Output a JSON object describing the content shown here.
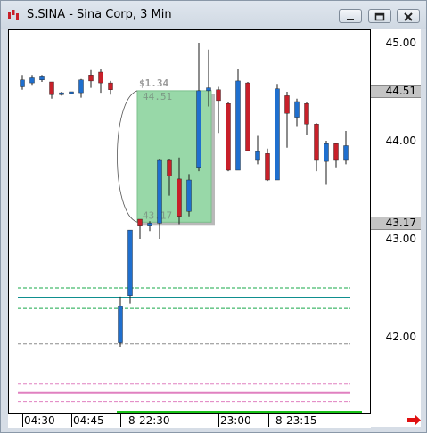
{
  "window": {
    "title": "S.SINA - Sina Corp, 3 Min",
    "colors": {
      "up": "#1f6fce",
      "down": "#c8202a",
      "selection": "#98d8a8",
      "tag": "#c4c4c4"
    }
  },
  "price_axis": {
    "labels": [
      "45.00",
      "44.00",
      "43.00",
      "42.00"
    ],
    "tags": [
      "44.51",
      "43.17"
    ]
  },
  "time_axis": {
    "labels": [
      "04:30",
      "04:45",
      "8-22:30",
      "23:00",
      "8-23:15"
    ]
  },
  "measure": {
    "change": "$1.34",
    "high": "44.51",
    "low": "43.17"
  },
  "chart_data": {
    "type": "candlestick",
    "ylim": [
      41.2,
      45.2
    ],
    "candles": [
      {
        "o": 44.55,
        "c": 44.62,
        "h": 44.67,
        "l": 44.52
      },
      {
        "o": 44.59,
        "c": 44.65,
        "h": 44.67,
        "l": 44.57
      },
      {
        "o": 44.62,
        "c": 44.66,
        "h": 44.67,
        "l": 44.6
      },
      {
        "o": 44.6,
        "c": 44.47,
        "h": 44.6,
        "l": 44.43
      },
      {
        "o": 44.47,
        "c": 44.49,
        "h": 44.5,
        "l": 44.46
      },
      {
        "o": 44.49,
        "c": 44.5,
        "h": 44.5,
        "l": 44.48
      },
      {
        "o": 44.49,
        "c": 44.62,
        "h": 44.63,
        "l": 44.44
      },
      {
        "o": 44.67,
        "c": 44.61,
        "h": 44.72,
        "l": 44.54
      },
      {
        "o": 44.7,
        "c": 44.59,
        "h": 44.73,
        "l": 44.49
      },
      {
        "o": 44.59,
        "c": 44.52,
        "h": 44.61,
        "l": 44.47
      },
      {
        "o": 41.94,
        "c": 42.31,
        "h": 42.41,
        "l": 41.9
      },
      {
        "o": 42.42,
        "c": 43.09,
        "h": 43.09,
        "l": 42.34
      },
      {
        "o": 43.2,
        "c": 43.13,
        "h": 43.17,
        "l": 43.0
      },
      {
        "o": 43.13,
        "c": 43.16,
        "h": 43.18,
        "l": 43.08
      },
      {
        "o": 43.16,
        "c": 43.8,
        "h": 43.81,
        "l": 43.0
      },
      {
        "o": 43.8,
        "c": 43.64,
        "h": 43.81,
        "l": 43.44
      },
      {
        "o": 43.61,
        "c": 43.23,
        "h": 43.83,
        "l": 43.15
      },
      {
        "o": 43.28,
        "c": 43.6,
        "h": 43.66,
        "l": 43.23
      },
      {
        "o": 43.72,
        "c": 44.51,
        "h": 45.0,
        "l": 43.69
      },
      {
        "o": 44.51,
        "c": 44.54,
        "h": 44.93,
        "l": 44.35
      },
      {
        "o": 44.52,
        "c": 44.41,
        "h": 44.55,
        "l": 44.08
      },
      {
        "o": 44.38,
        "c": 43.7,
        "h": 44.4,
        "l": 43.69
      },
      {
        "o": 43.7,
        "c": 44.61,
        "h": 44.73,
        "l": 43.7
      },
      {
        "o": 44.59,
        "c": 43.9,
        "h": 44.6,
        "l": 43.9
      },
      {
        "o": 43.8,
        "c": 43.89,
        "h": 44.05,
        "l": 43.76
      },
      {
        "o": 43.87,
        "c": 43.6,
        "h": 43.92,
        "l": 43.59
      },
      {
        "o": 43.6,
        "c": 44.53,
        "h": 44.58,
        "l": 43.6
      },
      {
        "o": 44.46,
        "c": 44.28,
        "h": 44.5,
        "l": 43.93
      },
      {
        "o": 44.24,
        "c": 44.4,
        "h": 44.43,
        "l": 44.15
      },
      {
        "o": 44.38,
        "c": 44.17,
        "h": 44.4,
        "l": 44.06
      },
      {
        "o": 44.17,
        "c": 43.8,
        "h": 44.18,
        "l": 43.69
      },
      {
        "o": 43.79,
        "c": 43.97,
        "h": 44.0,
        "l": 43.55
      },
      {
        "o": 43.97,
        "c": 43.8,
        "h": 43.98,
        "l": 43.72
      },
      {
        "o": 43.8,
        "c": 43.95,
        "h": 44.1,
        "l": 43.76
      }
    ],
    "levels": [
      {
        "price": 42.5,
        "color": "#17a84a",
        "style": "dash"
      },
      {
        "price": 42.4,
        "color": "#0f8f8f",
        "style": "solid"
      },
      {
        "price": 42.29,
        "color": "#17a84a",
        "style": "dash"
      },
      {
        "price": 41.93,
        "color": "#8c8c8c",
        "style": "dash"
      },
      {
        "price": 41.52,
        "color": "#e080c0",
        "style": "dash"
      },
      {
        "price": 41.43,
        "color": "#e080c0",
        "style": "solid"
      },
      {
        "price": 41.34,
        "color": "#e080c0",
        "style": "dash"
      }
    ]
  }
}
